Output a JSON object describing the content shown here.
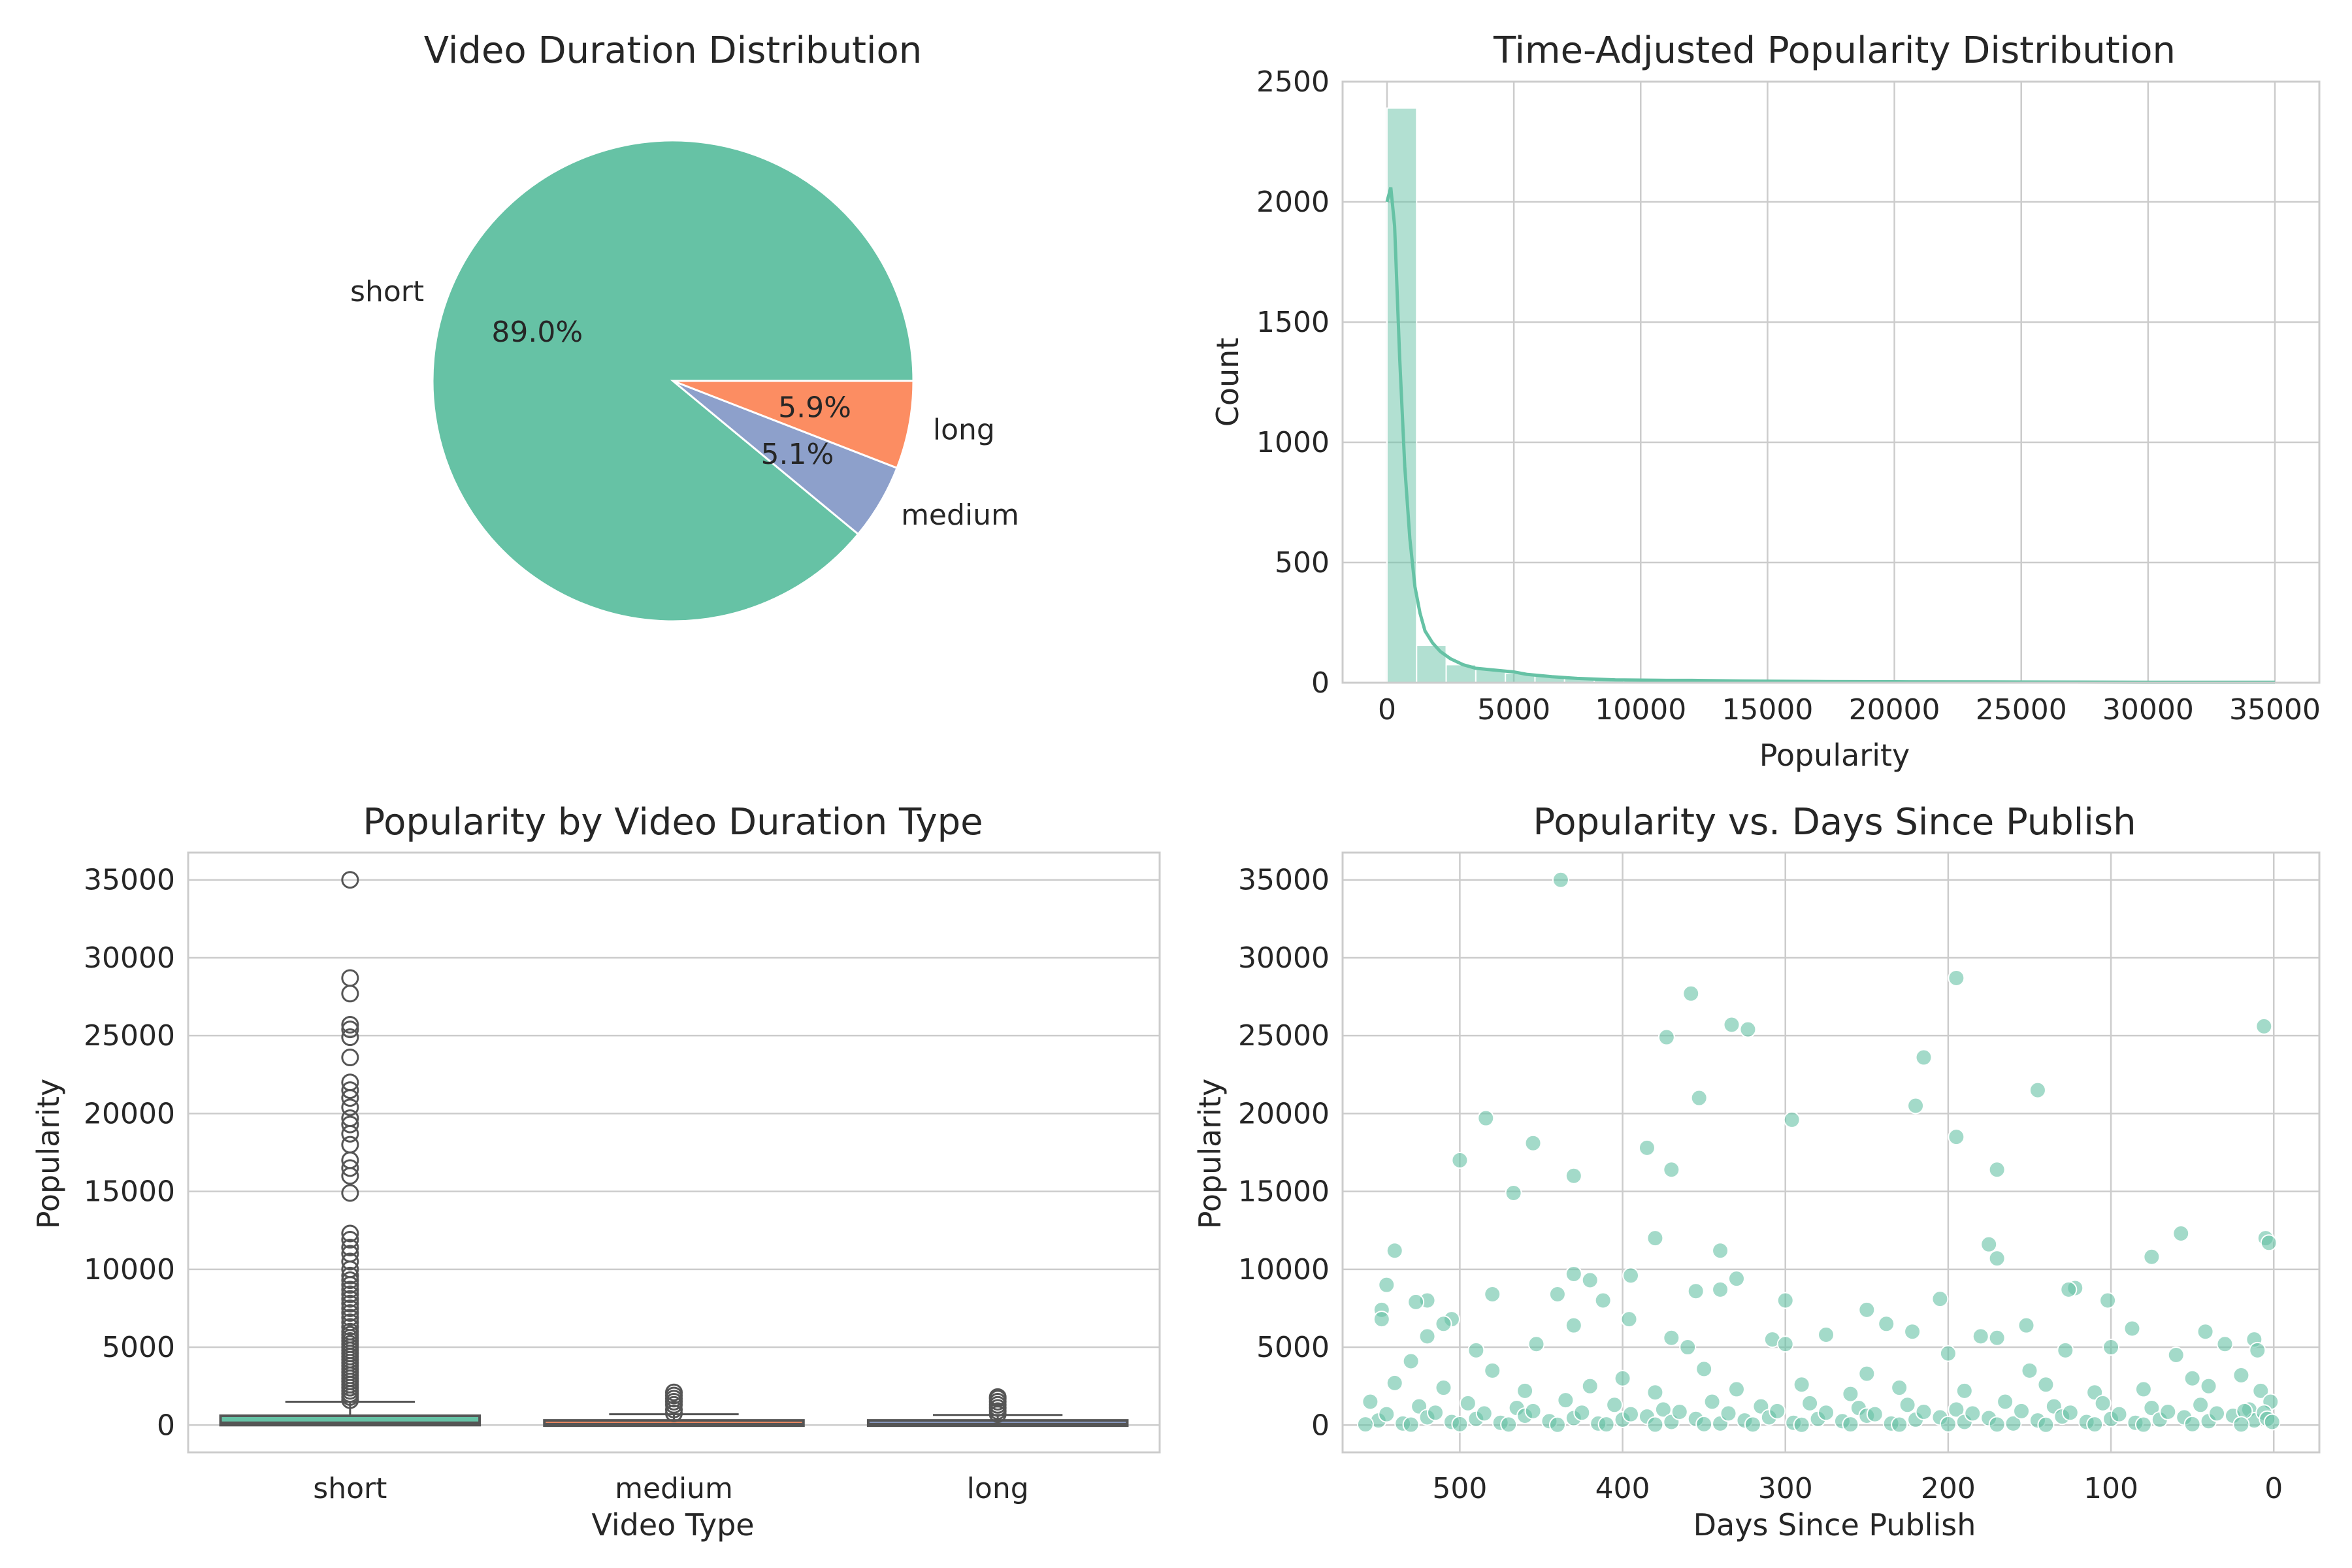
{
  "charts": [
    {
      "type": "pie",
      "title": "Video Duration Distribution",
      "labels": [
        "short",
        "medium",
        "long"
      ],
      "values": [
        89.0,
        5.1,
        5.9
      ],
      "pct_labels": [
        "89.0%",
        "5.1%",
        "5.9%"
      ],
      "colors": [
        "#66c2a5",
        "#8da0cb",
        "#fc8d62"
      ]
    },
    {
      "type": "bar",
      "title": "Time-Adjusted Popularity Distribution",
      "xlabel": "Popularity",
      "ylabel": "Count",
      "xlim": [
        -1750,
        36750
      ],
      "ylim": [
        0,
        2500
      ],
      "xticks": [
        0,
        5000,
        10000,
        15000,
        20000,
        25000,
        30000,
        35000
      ],
      "yticks": [
        0,
        500,
        1000,
        1500,
        2000,
        2500
      ],
      "bin_edges": [
        0,
        1167,
        2333,
        3500,
        4667,
        5833,
        7000,
        8167,
        9333,
        10500,
        11667,
        12833,
        14000,
        15167,
        16333,
        17500,
        18667,
        19833,
        21000,
        22167,
        23333,
        24500,
        25667,
        26833,
        28000,
        29167,
        30333,
        31500,
        32667,
        33833,
        35000
      ],
      "counts": [
        2390,
        155,
        75,
        55,
        40,
        28,
        20,
        15,
        10,
        8,
        6,
        6,
        5,
        4,
        4,
        4,
        3,
        3,
        3,
        2,
        2,
        2,
        2,
        2,
        1,
        1,
        1,
        1,
        1,
        1
      ],
      "kde_x": [
        0,
        150,
        300,
        500,
        700,
        900,
        1100,
        1300,
        1500,
        1800,
        2100,
        2500,
        3000,
        3500,
        4000,
        4500,
        5000,
        5500,
        6500,
        7500,
        9000,
        11000,
        12000,
        14000,
        17000,
        20000,
        25000,
        30000,
        35000
      ],
      "kde_y": [
        2000,
        2060,
        1900,
        1350,
        900,
        600,
        400,
        290,
        215,
        165,
        130,
        100,
        75,
        60,
        55,
        50,
        45,
        35,
        25,
        18,
        12,
        10,
        10,
        7,
        5,
        4,
        3,
        2,
        2
      ],
      "colors": {
        "bar": "#66c2a5",
        "line": "#66c2a5"
      }
    },
    {
      "type": "box",
      "title": "Popularity by Video Duration Type",
      "xlabel": "Video Type",
      "ylabel": "Popularity",
      "categories": [
        "short",
        "medium",
        "long"
      ],
      "ylim": [
        -1750,
        36750
      ],
      "yticks": [
        0,
        5000,
        10000,
        15000,
        20000,
        25000,
        30000,
        35000
      ],
      "boxes": [
        {
          "q1": 0,
          "median": 150,
          "q3": 600,
          "whisker_low": 0,
          "whisker_high": 1500,
          "outliers": [
            1600,
            1800,
            2000,
            2200,
            2400,
            2600,
            2800,
            3000,
            3200,
            3400,
            3600,
            3800,
            4000,
            4200,
            4400,
            4600,
            4800,
            5000,
            5200,
            5400,
            5600,
            5800,
            6000,
            6300,
            6600,
            6900,
            7200,
            7500,
            7800,
            8100,
            8400,
            8700,
            9000,
            9300,
            9600,
            10000,
            10500,
            11000,
            11400,
            11900,
            12300,
            14900,
            16000,
            16500,
            17000,
            18000,
            18700,
            19300,
            19700,
            20400,
            21000,
            21500,
            22000,
            23600,
            24900,
            25400,
            25700,
            27700,
            28700,
            35000
          ]
        },
        {
          "q1": 0,
          "median": 60,
          "q3": 300,
          "whisker_low": 0,
          "whisker_high": 700,
          "outliers": [
            750,
            1000,
            1300,
            1500,
            1700,
            1900,
            2100
          ]
        },
        {
          "q1": 0,
          "median": 60,
          "q3": 300,
          "whisker_low": 0,
          "whisker_high": 650,
          "outliers": [
            700,
            900,
            1100,
            1300,
            1500,
            1700,
            1800
          ]
        }
      ],
      "colors": [
        "#66c2a5",
        "#fc8d62",
        "#8da0cb"
      ]
    },
    {
      "type": "scatter",
      "title": "Popularity vs. Days Since Publish",
      "xlabel": "Days Since Publish",
      "ylabel": "Popularity",
      "xlim": [
        572,
        -28
      ],
      "ylim": [
        -1750,
        36750
      ],
      "xticks": [
        500,
        400,
        300,
        200,
        100,
        0
      ],
      "yticks": [
        0,
        5000,
        10000,
        15000,
        20000,
        25000,
        30000,
        35000
      ],
      "points": [
        [
          438,
          35000
        ],
        [
          195,
          28700
        ],
        [
          358,
          27700
        ],
        [
          333,
          25700
        ],
        [
          323,
          25400
        ],
        [
          6,
          25600
        ],
        [
          373,
          24900
        ],
        [
          215,
          23600
        ],
        [
          220,
          20500
        ],
        [
          353,
          21000
        ],
        [
          145,
          21500
        ],
        [
          484,
          19700
        ],
        [
          296,
          19600
        ],
        [
          195,
          18500
        ],
        [
          455,
          18100
        ],
        [
          385,
          17800
        ],
        [
          500,
          17000
        ],
        [
          370,
          16400
        ],
        [
          170,
          16400
        ],
        [
          430,
          16000
        ],
        [
          467,
          14900
        ],
        [
          380,
          12000
        ],
        [
          57,
          12300
        ],
        [
          5,
          12000
        ],
        [
          3,
          11700
        ],
        [
          540,
          11200
        ],
        [
          340,
          11200
        ],
        [
          175,
          11600
        ],
        [
          170,
          10700
        ],
        [
          75,
          10800
        ],
        [
          122,
          8800
        ],
        [
          126,
          8700
        ],
        [
          480,
          8400
        ],
        [
          102,
          8000
        ],
        [
          300,
          8000
        ],
        [
          520,
          8000
        ],
        [
          527,
          7900
        ],
        [
          412,
          8000
        ],
        [
          440,
          8400
        ],
        [
          355,
          8600
        ],
        [
          340,
          8700
        ],
        [
          205,
          8100
        ],
        [
          545,
          9000
        ],
        [
          395,
          9600
        ],
        [
          420,
          9300
        ],
        [
          430,
          9700
        ],
        [
          330,
          9400
        ],
        [
          548,
          7400
        ],
        [
          250,
          7400
        ],
        [
          505,
          6800
        ],
        [
          510,
          6500
        ],
        [
          548,
          6800
        ],
        [
          430,
          6400
        ],
        [
          396,
          6800
        ],
        [
          275,
          5800
        ],
        [
          308,
          5500
        ],
        [
          238,
          6500
        ],
        [
          152,
          6400
        ],
        [
          87,
          6200
        ],
        [
          42,
          6000
        ],
        [
          12,
          5500
        ],
        [
          170,
          5600
        ],
        [
          180,
          5700
        ],
        [
          222,
          6000
        ],
        [
          360,
          5000
        ],
        [
          370,
          5600
        ],
        [
          453,
          5200
        ],
        [
          490,
          4800
        ],
        [
          520,
          5700
        ],
        [
          530,
          4100
        ],
        [
          300,
          5200
        ],
        [
          200,
          4600
        ],
        [
          128,
          4800
        ],
        [
          100,
          5000
        ],
        [
          60,
          4500
        ],
        [
          30,
          5200
        ],
        [
          10,
          4800
        ],
        [
          480,
          3500
        ],
        [
          400,
          3000
        ],
        [
          350,
          3600
        ],
        [
          250,
          3300
        ],
        [
          150,
          3500
        ],
        [
          50,
          3000
        ],
        [
          20,
          3200
        ],
        [
          540,
          2700
        ],
        [
          510,
          2400
        ],
        [
          460,
          2200
        ],
        [
          420,
          2500
        ],
        [
          380,
          2100
        ],
        [
          330,
          2300
        ],
        [
          290,
          2600
        ],
        [
          260,
          2000
        ],
        [
          230,
          2400
        ],
        [
          190,
          2200
        ],
        [
          140,
          2600
        ],
        [
          110,
          2100
        ],
        [
          80,
          2300
        ],
        [
          40,
          2500
        ],
        [
          8,
          2200
        ],
        [
          555,
          1500
        ],
        [
          525,
          1200
        ],
        [
          495,
          1400
        ],
        [
          465,
          1100
        ],
        [
          435,
          1600
        ],
        [
          405,
          1300
        ],
        [
          375,
          1000
        ],
        [
          345,
          1500
        ],
        [
          315,
          1200
        ],
        [
          285,
          1400
        ],
        [
          255,
          1100
        ],
        [
          225,
          1300
        ],
        [
          195,
          1000
        ],
        [
          165,
          1500
        ],
        [
          135,
          1200
        ],
        [
          105,
          1400
        ],
        [
          75,
          1100
        ],
        [
          45,
          1300
        ],
        [
          15,
          1000
        ],
        [
          2,
          1500
        ],
        [
          550,
          300
        ],
        [
          535,
          100
        ],
        [
          520,
          500
        ],
        [
          505,
          200
        ],
        [
          490,
          400
        ],
        [
          475,
          150
        ],
        [
          460,
          600
        ],
        [
          445,
          250
        ],
        [
          430,
          450
        ],
        [
          415,
          100
        ],
        [
          400,
          350
        ],
        [
          385,
          550
        ],
        [
          370,
          200
        ],
        [
          355,
          400
        ],
        [
          340,
          100
        ],
        [
          325,
          300
        ],
        [
          310,
          500
        ],
        [
          295,
          150
        ],
        [
          280,
          400
        ],
        [
          265,
          250
        ],
        [
          250,
          600
        ],
        [
          235,
          100
        ],
        [
          220,
          350
        ],
        [
          205,
          500
        ],
        [
          190,
          200
        ],
        [
          175,
          450
        ],
        [
          160,
          100
        ],
        [
          145,
          300
        ],
        [
          130,
          550
        ],
        [
          115,
          200
        ],
        [
          100,
          400
        ],
        [
          85,
          150
        ],
        [
          70,
          350
        ],
        [
          55,
          500
        ],
        [
          40,
          250
        ],
        [
          25,
          600
        ],
        [
          12,
          300
        ],
        [
          6,
          800
        ],
        [
          4,
          400
        ],
        [
          1,
          200
        ],
        [
          545,
          700
        ],
        [
          515,
          800
        ],
        [
          485,
          750
        ],
        [
          455,
          900
        ],
        [
          425,
          800
        ],
        [
          395,
          700
        ],
        [
          365,
          850
        ],
        [
          335,
          750
        ],
        [
          305,
          900
        ],
        [
          275,
          800
        ],
        [
          245,
          700
        ],
        [
          215,
          850
        ],
        [
          185,
          750
        ],
        [
          155,
          900
        ],
        [
          125,
          800
        ],
        [
          95,
          700
        ],
        [
          65,
          850
        ],
        [
          35,
          750
        ],
        [
          18,
          900
        ],
        [
          558,
          50
        ],
        [
          530,
          30
        ],
        [
          500,
          60
        ],
        [
          470,
          40
        ],
        [
          440,
          20
        ],
        [
          410,
          50
        ],
        [
          380,
          30
        ],
        [
          350,
          60
        ],
        [
          320,
          40
        ],
        [
          290,
          20
        ],
        [
          260,
          50
        ],
        [
          230,
          30
        ],
        [
          200,
          60
        ],
        [
          170,
          40
        ],
        [
          140,
          20
        ],
        [
          110,
          50
        ],
        [
          80,
          30
        ],
        [
          50,
          60
        ],
        [
          20,
          40
        ]
      ],
      "color": "#66c2a5"
    }
  ]
}
